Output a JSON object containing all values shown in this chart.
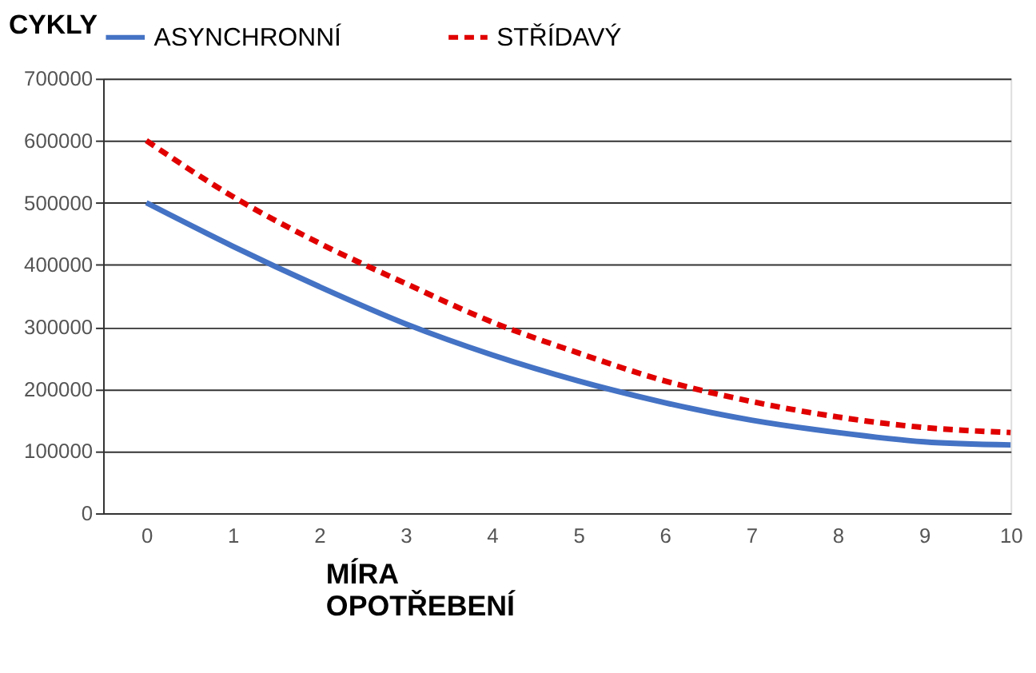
{
  "chart_data": {
    "type": "line",
    "xlabel": "MÍRA\nOPOTŘEBENÍ",
    "ylabel": "CYKLY",
    "x": [
      0,
      1,
      2,
      3,
      4,
      5,
      6,
      7,
      8,
      9,
      10
    ],
    "series": [
      {
        "name": "ASYNCHRONNÍ",
        "color": "#4472c4",
        "line_style": "solid",
        "values": [
          500000,
          430000,
          365000,
          305000,
          255000,
          213000,
          178000,
          150000,
          130000,
          115000,
          110000
        ]
      },
      {
        "name": "STŘÍDAVÝ",
        "color": "#e00000",
        "line_style": "dashed",
        "values": [
          600000,
          510000,
          435000,
          370000,
          308000,
          258000,
          213000,
          180000,
          155000,
          138000,
          130000
        ]
      }
    ],
    "xlim": [
      -0.5,
      10
    ],
    "ylim": [
      0,
      700000
    ],
    "xticks": [
      0,
      1,
      2,
      3,
      4,
      5,
      6,
      7,
      8,
      9,
      10
    ],
    "yticks": [
      0,
      100000,
      200000,
      300000,
      400000,
      500000,
      600000,
      700000
    ],
    "grid": "y",
    "legend": "top",
    "marker": "none"
  }
}
